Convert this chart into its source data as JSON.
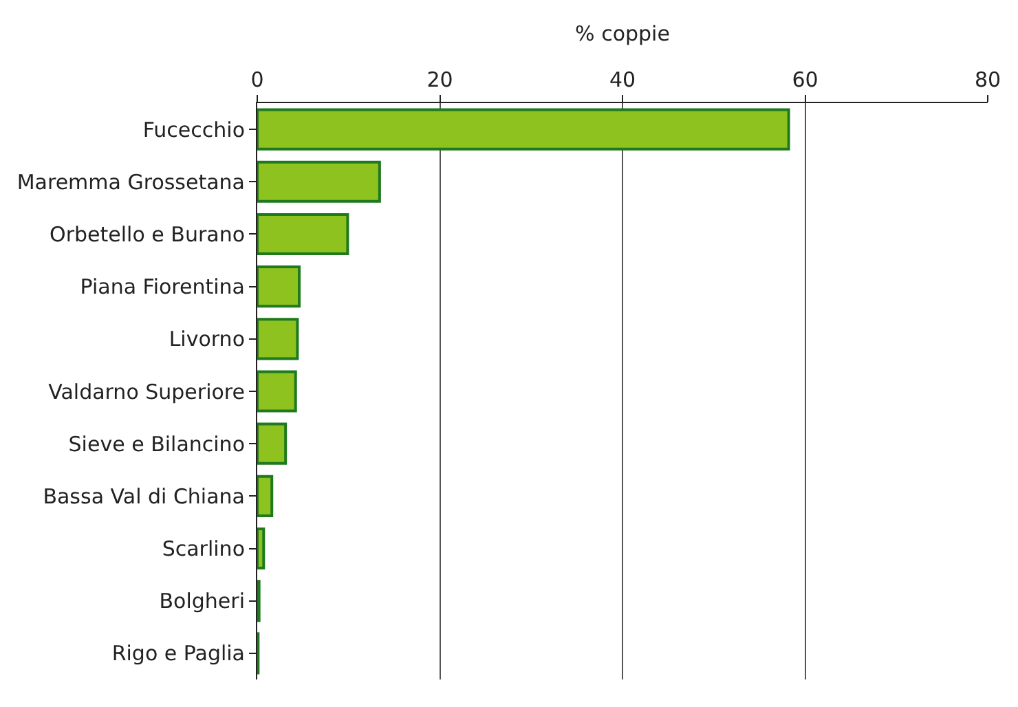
{
  "chart_data": {
    "type": "bar",
    "orientation": "horizontal",
    "xlabel": "% coppie",
    "categories": [
      "Fucecchio",
      "Maremma Grossetana",
      "Orbetello e Burano",
      "Piana Fiorentina",
      "Livorno",
      "Valdarno Superiore",
      "Sieve e Bilancino",
      "Bassa Val di Chiana",
      "Scarlino",
      "Bolgheri",
      "Rigo e Paglia"
    ],
    "series": [
      {
        "color": "#8dc21f",
        "values": [
          58.2,
          13.4,
          9.9,
          4.6,
          4.4,
          4.2,
          3.1,
          1.6,
          0.7,
          0.2,
          0.1
        ]
      }
    ],
    "xlim": [
      0,
      80
    ],
    "xticks": [
      0,
      20,
      40,
      60,
      80
    ],
    "grid": "x",
    "legend": false
  }
}
